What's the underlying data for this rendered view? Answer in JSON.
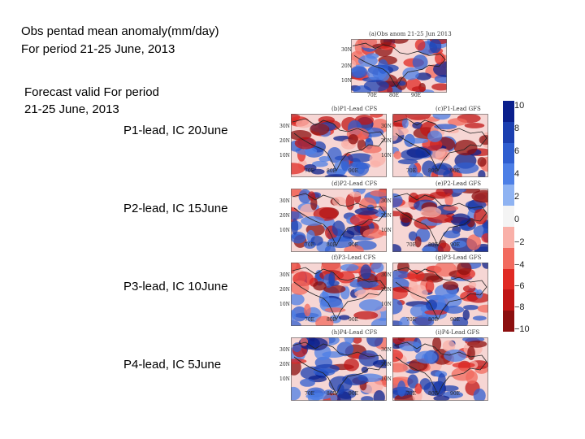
{
  "obs": {
    "title_line1": "Obs pentad mean anomaly(mm/day)",
    "title_line2": "For period 21-25 June, 2013"
  },
  "forecast": {
    "line1": "Forecast valid For period",
    "line2": "21-25 June, 2013"
  },
  "leads": [
    {
      "label": "P1-lead, IC 20June"
    },
    {
      "label": "P2-lead, IC 15June"
    },
    {
      "label": "P3-lead, IC 10June"
    },
    {
      "label": "P4-lead, IC 5June"
    }
  ],
  "panels": [
    {
      "title": "(a)Obs anom 21-25 Jun 2013"
    },
    {
      "title": "(b)P1-Lead CFS"
    },
    {
      "title": "(c)P1-Lead GFS"
    },
    {
      "title": "(d)P2-Lead CFS"
    },
    {
      "title": "(e)P2-Lead GFS"
    },
    {
      "title": "(f)P3-Lead CFS"
    },
    {
      "title": "(g)P3-Lead GFS"
    },
    {
      "title": "(h)P4-Lead CFS"
    },
    {
      "title": "(i)P4-Lead GFS"
    }
  ],
  "axes": {
    "lat_labels": [
      "30N",
      "20N",
      "10N"
    ],
    "lon_labels": [
      "70E",
      "80E",
      "90E"
    ]
  },
  "colorbar": {
    "ticks": [
      "10",
      "8",
      "6",
      "4",
      "2",
      "0",
      "−2",
      "−4",
      "−6",
      "−8",
      "−10"
    ],
    "colors": [
      "#0a1f8c",
      "#1b3fb0",
      "#2f5ed0",
      "#4d7fe6",
      "#8fb3f2",
      "#f4f4f4",
      "#f9b0a8",
      "#f26a5e",
      "#e02a24",
      "#c01515",
      "#8c0f0f"
    ]
  }
}
